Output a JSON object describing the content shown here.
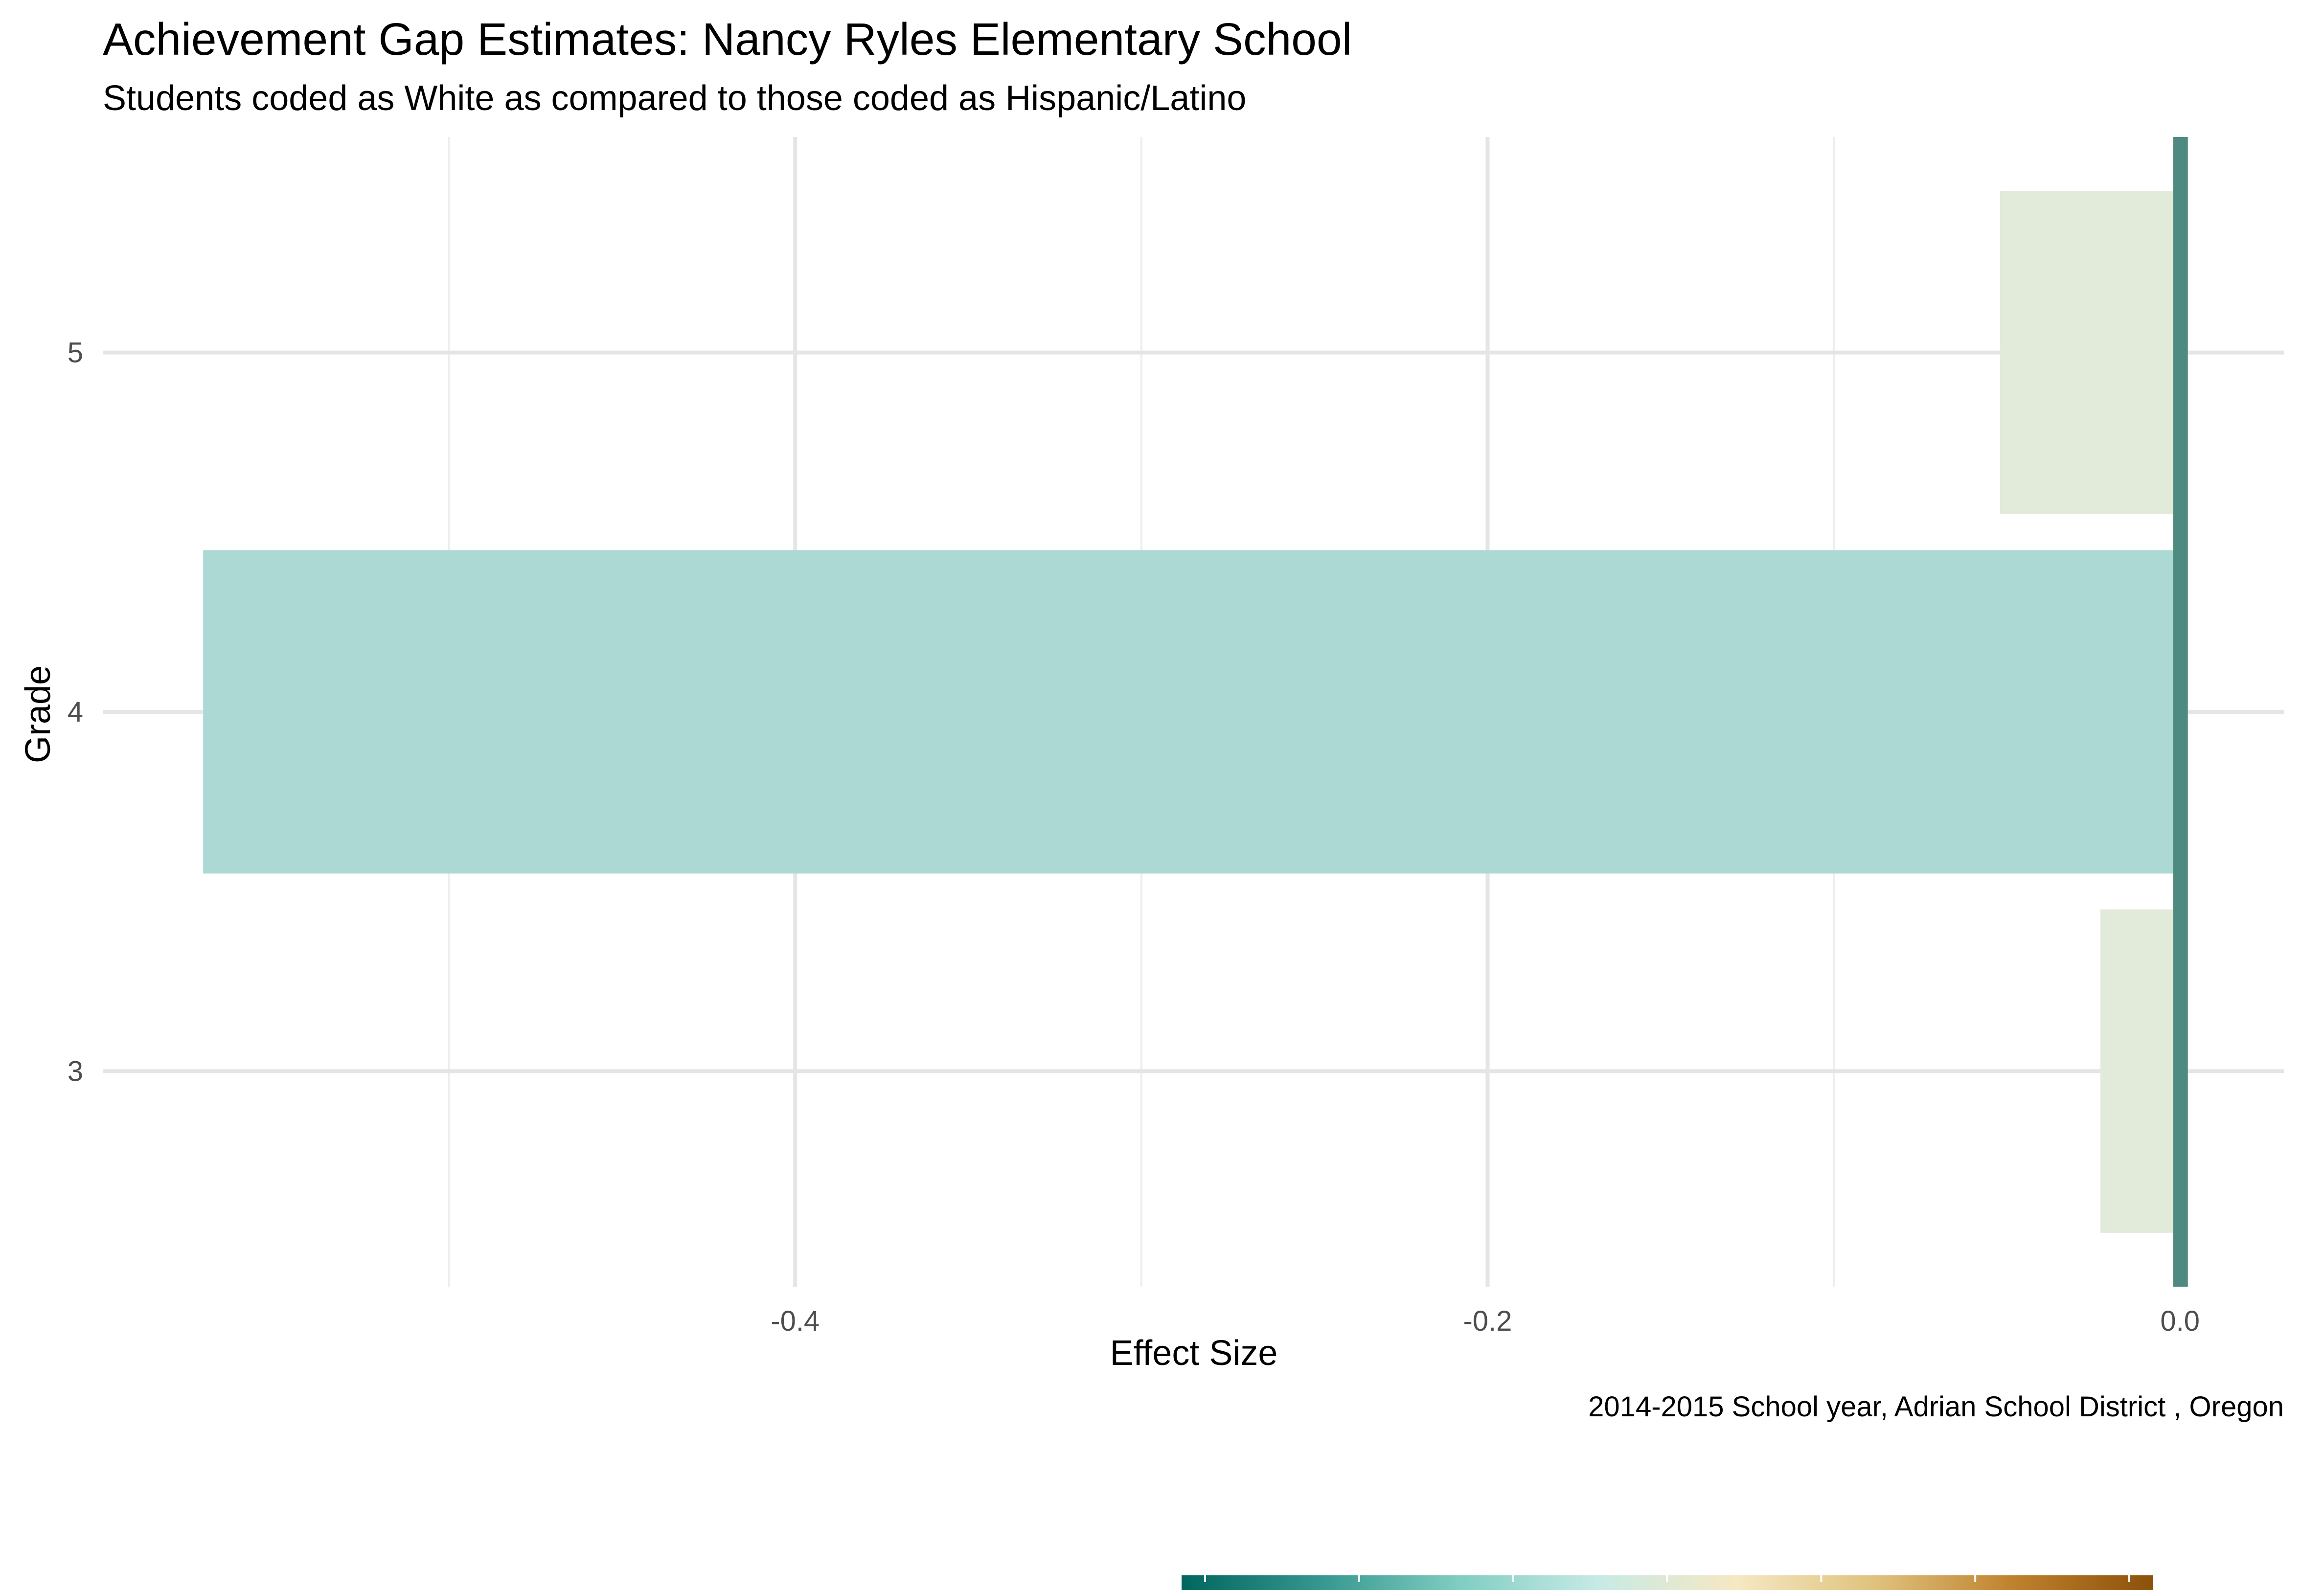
{
  "chart_data": {
    "type": "bar",
    "orientation": "horizontal",
    "title": "Achievement Gap Estimates: Nancy Ryles Elementary School",
    "subtitle": "Students coded as White as compared to those coded as Hispanic/Latino",
    "xlabel": "Effect Size",
    "ylabel": "Grade",
    "caption": "2014-2015 School year,  Adrian School District , Oregon",
    "categories": [
      "3",
      "4",
      "5"
    ],
    "values": [
      -0.023,
      -0.571,
      -0.052
    ],
    "bar_colors": [
      "#e2ead9",
      "#acd9d3",
      "#e2ead9"
    ],
    "reference_line": {
      "value": 0.0,
      "color": "#4f8a80"
    },
    "xlim": [
      -0.6,
      0.03
    ],
    "x_ticks": [
      -0.4,
      -0.2,
      0.0
    ],
    "x_tick_labels": [
      "-0.4",
      "-0.2",
      "0.0"
    ],
    "y_tick_labels": [
      "3",
      "4",
      "5"
    ],
    "grid": true,
    "legend": {
      "type": "colorbar",
      "placement": "bottom",
      "colors": [
        "#01665e",
        "#35978f",
        "#80cdc1",
        "#c7eae5",
        "#f6e8c3",
        "#dfc27d",
        "#bf812d",
        "#8c510a"
      ]
    }
  }
}
